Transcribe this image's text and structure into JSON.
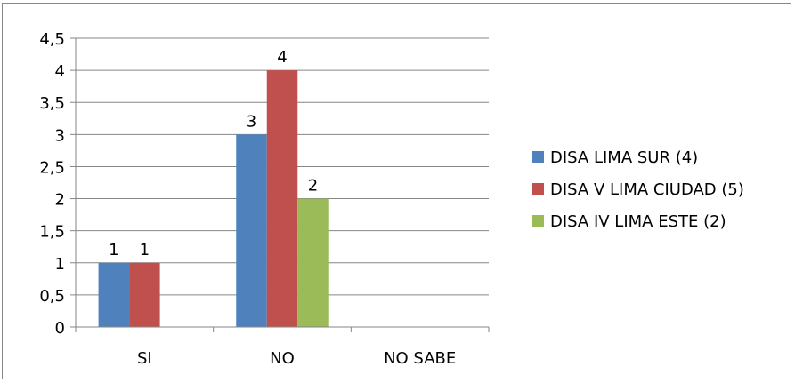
{
  "chart_data": {
    "type": "bar",
    "categories": [
      "SI",
      "NO",
      "NO SABE"
    ],
    "series": [
      {
        "name": "DISA LIMA SUR (4)",
        "values": [
          1,
          3,
          null
        ],
        "color": "#4f81bd"
      },
      {
        "name": "DISA V LIMA CIUDAD (5)",
        "values": [
          1,
          4,
          null
        ],
        "color": "#c0504d"
      },
      {
        "name": "DISA IV LIMA ESTE (2)",
        "values": [
          null,
          2,
          null
        ],
        "color": "#9bbb59"
      }
    ],
    "data_labels": [
      [
        "1",
        "3",
        null
      ],
      [
        "1",
        "4",
        null
      ],
      [
        null,
        "2",
        null
      ]
    ],
    "y_ticks": [
      "0",
      "0,5",
      "1",
      "1,5",
      "2",
      "2,5",
      "3",
      "3,5",
      "4",
      "4,5"
    ],
    "ylim": [
      0,
      4.5
    ],
    "y_step": 0.5,
    "grid": true,
    "legend_position": "right",
    "gridline_color": "#868686"
  }
}
